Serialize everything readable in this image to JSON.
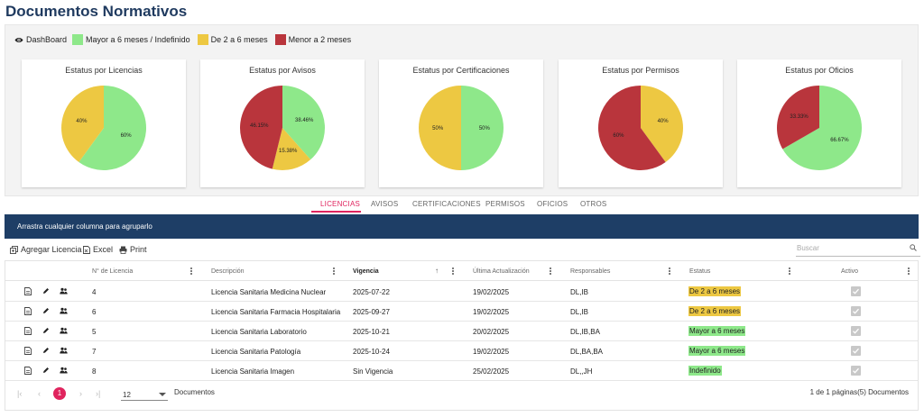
{
  "title": "Documentos Normativos",
  "legend": {
    "dashboard": "DashBoard",
    "items": [
      {
        "label": "Mayor a 6 meses / Indefinido",
        "color": "#8ee88a"
      },
      {
        "label": "De 2 a 6 meses",
        "color": "#edc842"
      },
      {
        "label": "Menor a 2 meses",
        "color": "#b9353c"
      }
    ]
  },
  "charts": [
    {
      "title": "Estatus por Licencias",
      "slices": [
        {
          "label": "60%",
          "value": 60,
          "color": "#8ee88a"
        },
        {
          "label": "40%",
          "value": 40,
          "color": "#edc842"
        }
      ]
    },
    {
      "title": "Estatus por Avisos",
      "slices": [
        {
          "label": "38.46%",
          "value": 38.46,
          "color": "#8ee88a"
        },
        {
          "label": "15.38%",
          "value": 15.38,
          "color": "#edc842"
        },
        {
          "label": "46.15%",
          "value": 46.15,
          "color": "#b9353c"
        }
      ]
    },
    {
      "title": "Estatus por Certificaciones",
      "slices": [
        {
          "label": "50%",
          "value": 50,
          "color": "#8ee88a"
        },
        {
          "label": "50%",
          "value": 50,
          "color": "#edc842"
        }
      ]
    },
    {
      "title": "Estatus por Permisos",
      "slices": [
        {
          "label": "40%",
          "value": 40,
          "color": "#edc842"
        },
        {
          "label": "60%",
          "value": 60,
          "color": "#b9353c"
        }
      ]
    },
    {
      "title": "Estatus por Oficios",
      "slices": [
        {
          "label": "66.67%",
          "value": 66.67,
          "color": "#8ee88a"
        },
        {
          "label": "33.33%",
          "value": 33.33,
          "color": "#b9353c"
        }
      ]
    }
  ],
  "tabs": [
    "LICENCIAS",
    "AVISOS",
    "CERTIFICACIONES",
    "PERMISOS",
    "OFICIOS",
    "OTROS"
  ],
  "active_tab": "LICENCIAS",
  "group_bar": "Arrastra cualquier columna para agruparlo",
  "toolbar": {
    "add": "Agregar Licencia",
    "excel": "Excel",
    "print": "Print",
    "search_placeholder": "Buscar"
  },
  "columns": [
    "N° de Licencia",
    "Descripción",
    "Vigencia",
    "Última Actualización",
    "Responsables",
    "Estatus",
    "Activo"
  ],
  "rows": [
    {
      "num": "4",
      "desc": "Licencia Sanitaria Medicina Nuclear",
      "vig": "2025-07-22",
      "upd": "19/02/2025",
      "resp": "DL,IB",
      "status": "De 2 a 6 meses",
      "status_color": "#edc842",
      "active": true
    },
    {
      "num": "6",
      "desc": "Licencia Sanitaria Farmacia Hospitalaria",
      "vig": "2025-09-27",
      "upd": "19/02/2025",
      "resp": "DL,IB",
      "status": "De 2 a 6 meses",
      "status_color": "#edc842",
      "active": true
    },
    {
      "num": "5",
      "desc": "Licencia Sanitaria Laboratorio",
      "vig": "2025-10-21",
      "upd": "20/02/2025",
      "resp": "DL,IB,BA",
      "status": "Mayor a 6 meses",
      "status_color": "#8ee88a",
      "active": true
    },
    {
      "num": "7",
      "desc": "Licencia Sanitaria Patología",
      "vig": "2025-10-24",
      "upd": "19/02/2025",
      "resp": "DL,BA,BA",
      "status": "Mayor a 6 meses",
      "status_color": "#8ee88a",
      "active": true
    },
    {
      "num": "8",
      "desc": "Licencia Sanitaria Imagen",
      "vig": "Sin Vigencia",
      "upd": "25/02/2025",
      "resp": "DL,,JH",
      "status": "Indefinido",
      "status_color": "#8ee88a",
      "active": true
    }
  ],
  "pager": {
    "current": "1",
    "page_size": "12",
    "size_label": "Documentos",
    "info": "1 de 1 páginas(5) Documentos"
  }
}
